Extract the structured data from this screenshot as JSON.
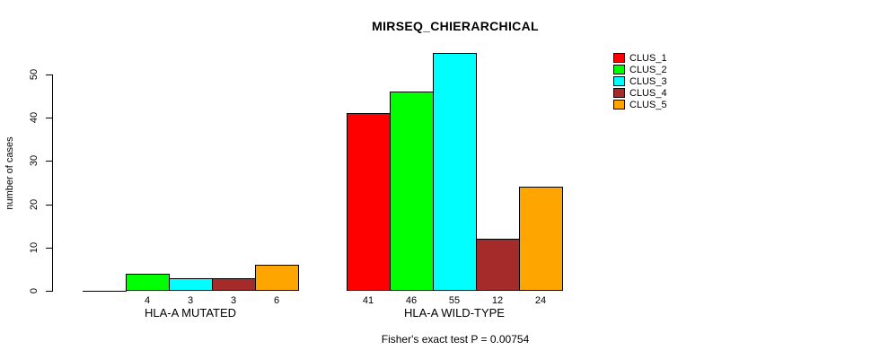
{
  "chart_data": {
    "type": "bar",
    "title": "MIRSEQ_CHIERARCHICAL",
    "ylabel": "number of cases",
    "subtitle": "Fisher's exact test P = 0.00754",
    "yticks": [
      0,
      10,
      20,
      30,
      40,
      50
    ],
    "ylim": [
      0,
      55
    ],
    "grid": false,
    "legend_position": "top-right",
    "bar_value_labels": true,
    "series": [
      {
        "name": "CLUS_1",
        "color": "#FF0000"
      },
      {
        "name": "CLUS_2",
        "color": "#00FF00"
      },
      {
        "name": "CLUS_3",
        "color": "#00FFFF"
      },
      {
        "name": "CLUS_4",
        "color": "#A52A2A"
      },
      {
        "name": "CLUS_5",
        "color": "#FFA500"
      }
    ],
    "groups": [
      {
        "label": "HLA-A MUTATED",
        "values": [
          0,
          4,
          3,
          3,
          6
        ]
      },
      {
        "label": "HLA-A WILD-TYPE",
        "values": [
          41,
          46,
          55,
          12,
          24
        ]
      }
    ]
  }
}
